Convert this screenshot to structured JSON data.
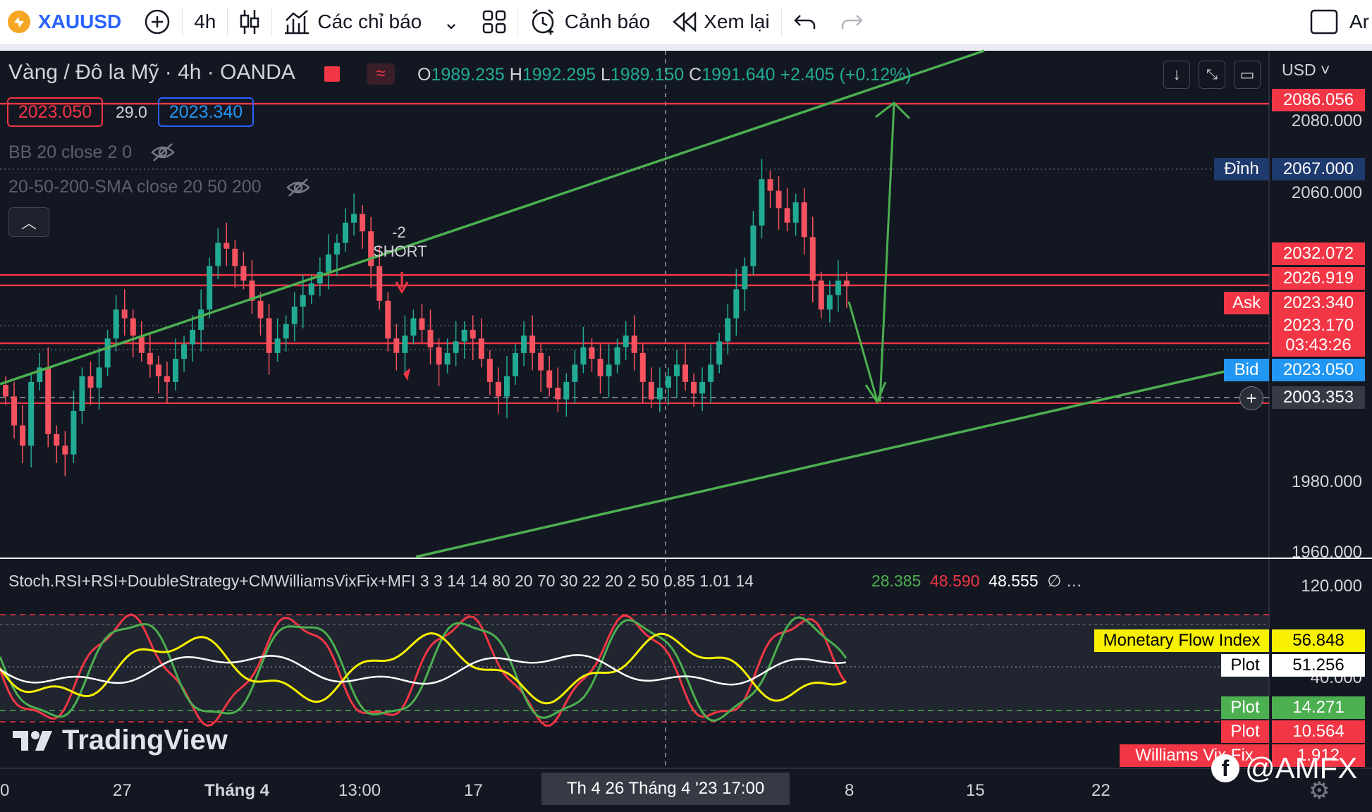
{
  "toolbar": {
    "symbol": "XAUUSD",
    "interval": "4h",
    "indicators_label": "Các chỉ báo",
    "alerts_label": "Cảnh báo",
    "replay_label": "Xem lại",
    "right_edge_text": "Ar"
  },
  "header": {
    "title": "Vàng / Đô la Mỹ · 4h · OANDA",
    "ohlc": {
      "o_label": "O",
      "o": "1989.235",
      "h_label": "H",
      "h": "1992.295",
      "l_label": "L",
      "l": "1989.150",
      "c_label": "C",
      "c": "1991.640",
      "change": "+2.405 (+0.12%)"
    },
    "bid_box": "2023.050",
    "spread": "29.0",
    "ask_box": "2023.340",
    "currency": "USD"
  },
  "indicators": {
    "bb": "BB 20 close 2 0",
    "sma": "20-50-200-SMA close 20 50 200",
    "oscillator_name": "Stoch.RSI+RSI+DoubleStrategy+CMWilliamsVixFix+MFI 3 3 14 14 80 20 70 30 22 20 2 50 0.85 1.01 14",
    "osc_v1": "28.385",
    "osc_v2": "48.590",
    "osc_v3": "48.555",
    "osc_more": "∅ …"
  },
  "annotations": {
    "short_count": "-2",
    "short_label": "SHORT"
  },
  "price_axis": {
    "ticks": [
      "2080.000",
      "2060.000",
      "1980.000",
      "1960.000"
    ],
    "tags": [
      {
        "label": "",
        "value": "2086.056",
        "color": "#f23645"
      },
      {
        "label": "Đỉnh",
        "value": "2067.000",
        "color": "#1e3a6e"
      },
      {
        "label": "",
        "value": "2032.072",
        "color": "#f23645"
      },
      {
        "label": "",
        "value": "2026.919",
        "color": "#f23645"
      },
      {
        "label": "Ask",
        "value": "2023.340",
        "color": "#f23645"
      },
      {
        "label": "",
        "value": "2023.170",
        "color": "#f23645"
      },
      {
        "label": "",
        "value": "03:43:26",
        "color": "#f23645"
      },
      {
        "label": "Bid",
        "value": "2023.050",
        "color": "#2196f3"
      },
      {
        "label": "",
        "value": "2003.353",
        "color": "#363a45"
      }
    ]
  },
  "oscillator_axis": {
    "tick_top": "120.000",
    "tick_mid": "40.000",
    "tags": [
      {
        "label": "Monetary Flow Index",
        "value": "56.848",
        "color": "#f7f000",
        "text": "#000"
      },
      {
        "label": "Plot",
        "value": "51.256",
        "color": "#ffffff",
        "text": "#000"
      },
      {
        "label": "Plot",
        "value": "14.271",
        "color": "#4caf50",
        "text": "#fff"
      },
      {
        "label": "Plot",
        "value": "10.564",
        "color": "#f23645",
        "text": "#fff"
      },
      {
        "label": "Williams Vix Fix",
        "value": "1.912",
        "color": "#f23645",
        "text": "#fff"
      }
    ]
  },
  "time_axis": {
    "labels": [
      "0",
      "27",
      "Tháng 4",
      "13:00",
      "17",
      "8",
      "15",
      "22"
    ],
    "crosshair_label": "Th 4 26 Tháng 4 '23   17:00"
  },
  "watermark": {
    "logo_text": "TradingView",
    "social": "@AMFX"
  },
  "chart_data": {
    "type": "candlestick",
    "instrument": "XAUUSD",
    "timeframe": "4h",
    "y_range": [
      1960,
      2090
    ],
    "horizontal_lines": [
      2086.056,
      2026.919,
      2023.34,
      2003.353
    ],
    "pattern": "ascending channel",
    "close_series": [
      1985,
      1975,
      1968,
      1990,
      1995,
      1972,
      1968,
      1965,
      1980,
      1992,
      1988,
      1995,
      2005,
      2015,
      2012,
      2006,
      2000,
      1996,
      1992,
      1990,
      1998,
      2003,
      2008,
      2015,
      2030,
      2038,
      2036,
      2030,
      2025,
      2018,
      2012,
      2000,
      2005,
      2010,
      2016,
      2020,
      2024,
      2028,
      2034,
      2038,
      2045,
      2048,
      2042,
      2030,
      2018,
      2005,
      2000,
      2006,
      2012,
      2008,
      2002,
      1996,
      2000,
      2004,
      2008,
      2005,
      1998,
      1990,
      1985,
      1992,
      2000,
      2006,
      2000,
      1994,
      1988,
      1984,
      1990,
      1996,
      2002,
      1998,
      1992,
      1996,
      2002,
      2006,
      2000,
      1990,
      1984,
      1988,
      1992,
      1996,
      1990,
      1986,
      1990,
      1996,
      2004,
      2012,
      2022,
      2030,
      2044,
      2060,
      2056,
      2050,
      2045,
      2052,
      2040,
      2025,
      2015,
      2020,
      2025,
      2023
    ]
  }
}
